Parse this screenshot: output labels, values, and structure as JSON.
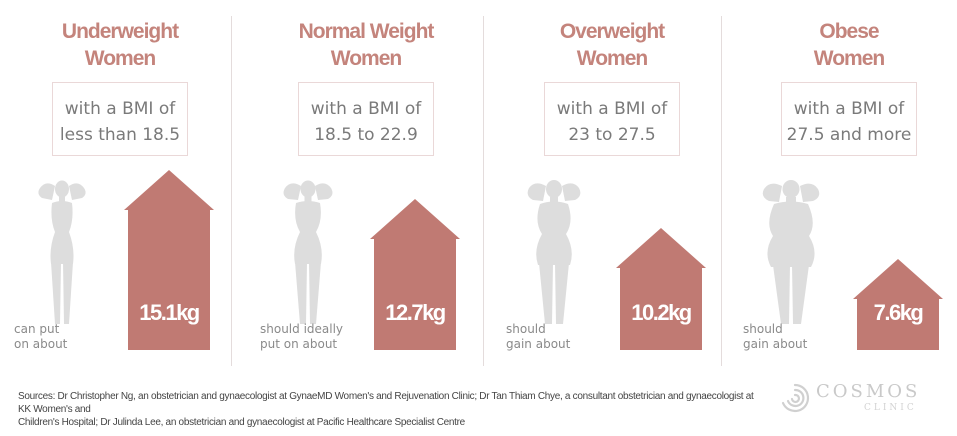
{
  "colors": {
    "accent": "#c4847c",
    "arrow": "#c07a73",
    "figure": "#dddddd",
    "divider": "#e4dcdc"
  },
  "categories": [
    {
      "title_line1": "Underweight",
      "title_line2": "Women",
      "bmi_line1": "with a BMI of",
      "bmi_line2": "less than 18.5",
      "caption_line1": "can put",
      "caption_line2": "on about",
      "gain_label": "15.1kg",
      "figure_icon": "slim-woman-silhouette-icon"
    },
    {
      "title_line1": "Normal Weight",
      "title_line2": "Women",
      "bmi_line1": "with a BMI of",
      "bmi_line2": "18.5 to 22.9",
      "caption_line1": "should ideally",
      "caption_line2": "put on about",
      "gain_label": "12.7kg",
      "figure_icon": "normal-woman-silhouette-icon"
    },
    {
      "title_line1": "Overweight",
      "title_line2": "Women",
      "bmi_line1": "with a BMI of",
      "bmi_line2": "23 to 27.5",
      "caption_line1": "should",
      "caption_line2": "gain about",
      "gain_label": "10.2kg",
      "figure_icon": "overweight-woman-silhouette-icon"
    },
    {
      "title_line1": "Obese",
      "title_line2": "Women",
      "bmi_line1": "with a BMI of",
      "bmi_line2": "27.5 and more",
      "caption_line1": "should",
      "caption_line2": "gain about",
      "gain_label": "7.6kg",
      "figure_icon": "obese-woman-silhouette-icon"
    }
  ],
  "chart_data": {
    "type": "bar",
    "categories": [
      "Underweight Women",
      "Normal Weight Women",
      "Overweight Women",
      "Obese Women"
    ],
    "values": [
      15.1,
      12.7,
      10.2,
      7.6
    ],
    "unit": "kg",
    "ylim": [
      0,
      15.1
    ]
  },
  "footer": {
    "sources_line1": "Sources: Dr Christopher Ng, an obstetrician and gynaecologist at GynaeMD Women's and Rejuvenation Clinic; Dr Tan Thiam Chye, a consultant obstetrician and gynaecologist at KK Women's and",
    "sources_line2": "Children's Hospital; Dr Julinda Lee, an obstetrician and gynaecologist at Pacific Healthcare Specialist Centre"
  },
  "logo": {
    "word": "COSMOS",
    "sub": "CLINIC",
    "icon": "swirl-logo-icon"
  }
}
